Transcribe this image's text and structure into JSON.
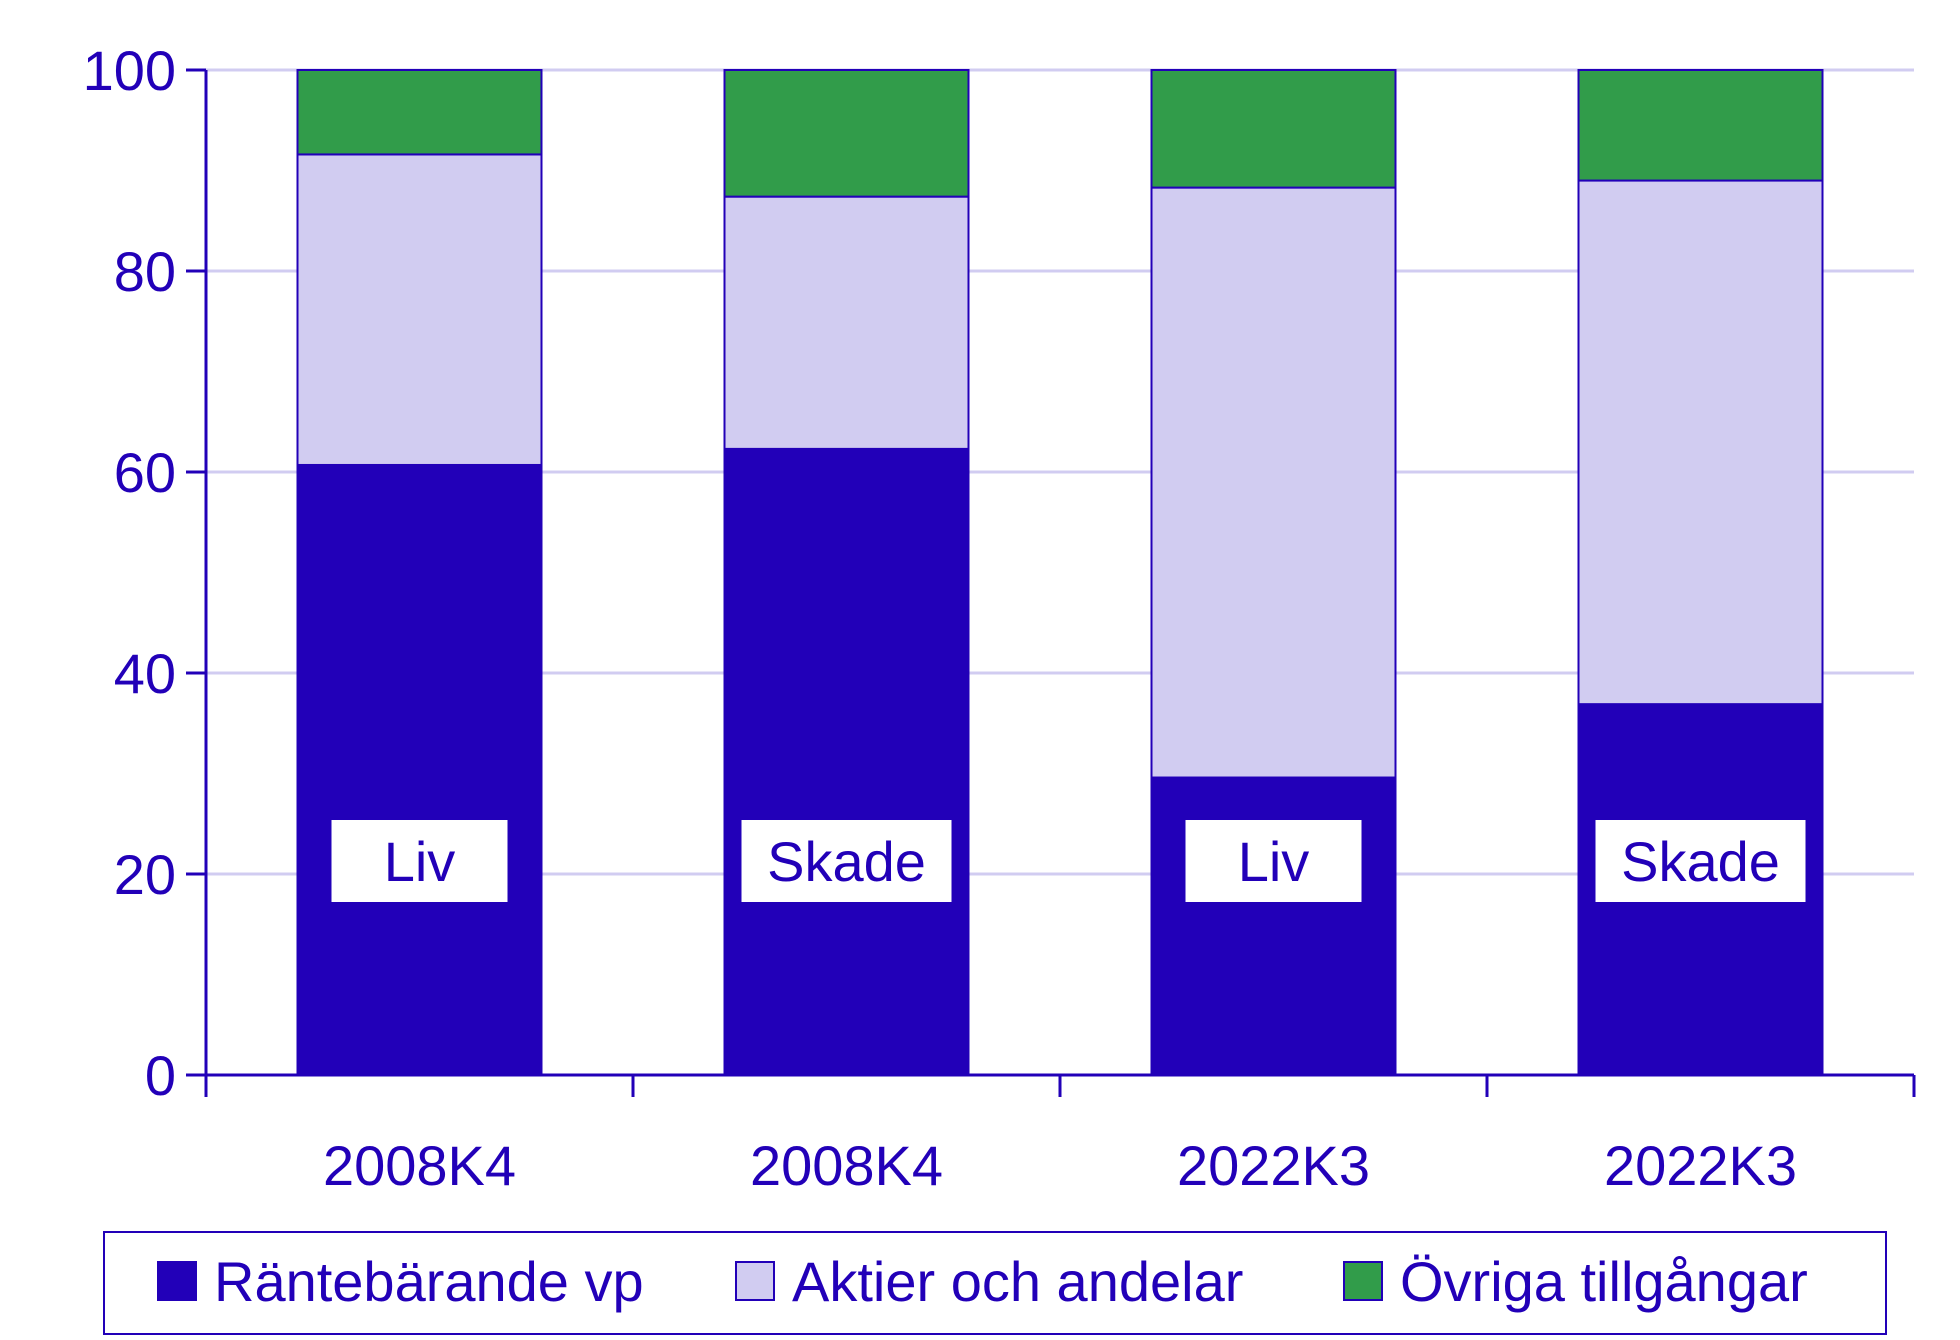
{
  "chart_data": {
    "type": "bar",
    "stacked": true,
    "categories": [
      "2008K4",
      "2008K4",
      "2022K3",
      "2022K3"
    ],
    "bar_labels": [
      "Liv",
      "Skade",
      "Liv",
      "Skade"
    ],
    "series": [
      {
        "name": "Räntebärande vp",
        "color": "#2200b8",
        "values": [
          60.7,
          62.3,
          29.6,
          36.9
        ]
      },
      {
        "name": "Aktier och andelar",
        "color": "#d1ccf1",
        "values": [
          30.9,
          25.1,
          58.7,
          52.1
        ]
      },
      {
        "name": "Övriga tillgångar",
        "color": "#319c4a",
        "values": [
          8.4,
          12.6,
          11.7,
          11.0
        ]
      }
    ],
    "ylim": [
      0,
      100
    ],
    "yticks": [
      "0",
      "20",
      "40",
      "60",
      "80",
      "100"
    ],
    "grid": true,
    "legend_position": "bottom",
    "colors": {
      "axis": "#2200b8",
      "grid": "#d1ccf1",
      "text": "#2200b8"
    }
  }
}
